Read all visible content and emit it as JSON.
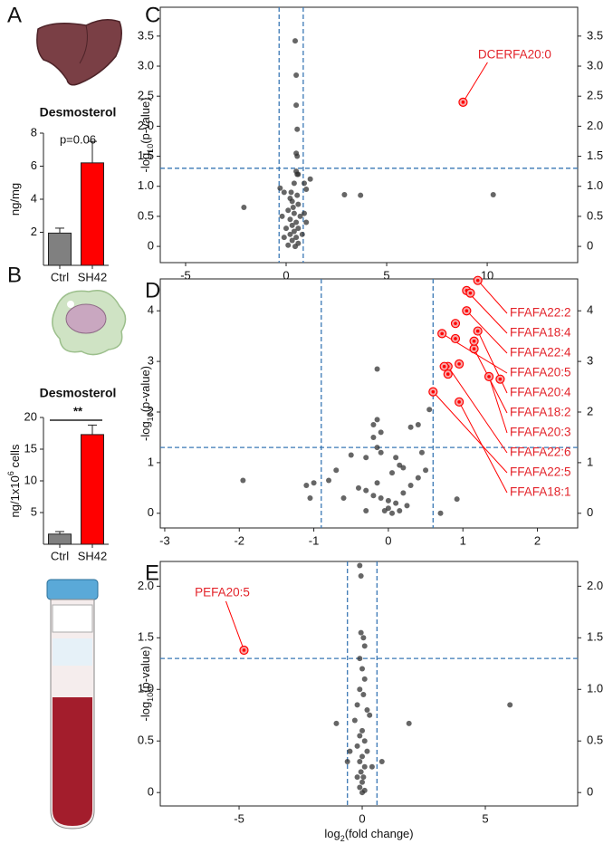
{
  "chart_data": [
    {
      "type": "bar",
      "panel": "A",
      "title": "Desmosterol",
      "annotation": "p=0.06",
      "ylabel": {
        "text": "ng/mg"
      },
      "categories": [
        "Ctrl",
        "SH42"
      ],
      "values": [
        1.95,
        6.2
      ],
      "errors": [
        0.3,
        1.3
      ],
      "colors": [
        "#808080",
        "#ff0000"
      ],
      "ylim": [
        0,
        8
      ],
      "yticks": [
        2,
        4,
        6,
        8
      ]
    },
    {
      "type": "bar",
      "panel": "B",
      "title": "Desmosterol",
      "significance": "**",
      "ylabel": {
        "text": "ng/1x10",
        "sup": "6",
        "tail": " cells"
      },
      "categories": [
        "Ctrl",
        "SH42"
      ],
      "values": [
        1.6,
        17.3
      ],
      "errors": [
        0.4,
        1.5
      ],
      "colors": [
        "#808080",
        "#ff0000"
      ],
      "ylim": [
        0,
        20
      ],
      "yticks": [
        5,
        10,
        15,
        20
      ]
    },
    {
      "type": "scatter",
      "panel": "C",
      "ylabel": {
        "text": "-log",
        "sub": "10",
        "tail": "(p-value)"
      },
      "xlim": [
        -6.26,
        14.5
      ],
      "xticks": [
        -5,
        0,
        5,
        10
      ],
      "ylim": [
        -0.27,
        3.98
      ],
      "yticks": [
        0,
        0.5,
        {
          "value": 1,
          "label": "1.0"
        },
        1.5,
        {
          "value": 2,
          "label": "2.0"
        },
        2.5,
        {
          "value": 3,
          "label": "3.0"
        },
        3.5
      ],
      "vlines": [
        -0.35,
        0.85
      ],
      "hline": 1.3,
      "color": "#333333",
      "highlight_color": "#ff0000",
      "line_color": "#3a78b5",
      "x": [
        0.45,
        0.5,
        0.5,
        0.55,
        0.5,
        0.55,
        0.6,
        0.5,
        0.55,
        0.4,
        -0.3,
        -0.1,
        0.9,
        1.2,
        1.0,
        2.9,
        3.7,
        10.3,
        -2.1,
        0.2,
        0.3,
        0.6,
        0.1,
        0.4,
        0.7,
        0.2,
        0.5,
        0.3,
        0.0,
        0.6,
        0.4,
        0.2,
        0.5,
        0.3,
        0.6,
        0.1,
        0.45,
        0.8,
        0.9,
        1.0,
        -0.2,
        -0.1,
        0.35,
        0.25,
        0.55
      ],
      "values": [
        3.42,
        2.85,
        2.35,
        1.95,
        1.55,
        1.5,
        1.2,
        1.25,
        1.2,
        1.05,
        0.97,
        0.9,
        1.05,
        1.12,
        0.95,
        0.86,
        0.85,
        0.86,
        0.65,
        0.8,
        0.75,
        0.7,
        0.6,
        0.55,
        0.5,
        0.45,
        0.4,
        0.35,
        0.3,
        0.3,
        0.25,
        0.2,
        0.15,
        0.1,
        0.05,
        0.02,
        0.0,
        0.2,
        0.55,
        0.4,
        0.5,
        0.15,
        0.65,
        0.9,
        0.85
      ],
      "highlight": {
        "x": [
          8.8
        ],
        "values": [
          2.4
        ],
        "labels": [
          "DCERFA20:0"
        ]
      }
    },
    {
      "type": "scatter",
      "panel": "D",
      "ylabel": {
        "text": "-log",
        "sub": "10",
        "tail": "(p-value)"
      },
      "xlim": [
        -3.06,
        2.54
      ],
      "xticks": [
        -3,
        -2,
        -1,
        0,
        1,
        2
      ],
      "ylim": [
        -0.29,
        4.63
      ],
      "yticks": [
        0,
        1,
        2,
        3,
        4
      ],
      "vlines": [
        -0.9,
        0.6
      ],
      "hline": 1.3,
      "color": "#333333",
      "highlight_color": "#ff0000",
      "line_color": "#3a78b5",
      "x": [
        -0.15,
        0.55,
        0.4,
        0.3,
        -0.15,
        -0.2,
        -0.1,
        -0.2,
        -0.15,
        -0.1,
        -0.3,
        0.1,
        0.15,
        0.05,
        -0.5,
        -0.7,
        -0.8,
        -1.0,
        -1.1,
        -1.05,
        -1.95,
        -0.4,
        -0.3,
        -0.2,
        -0.1,
        0.0,
        0.1,
        0.0,
        -0.05,
        0.05,
        0.15,
        0.2,
        0.3,
        0.4,
        0.5,
        -0.6,
        0.7,
        0.92,
        -0.3,
        0.25,
        -0.15,
        0.45,
        0.2
      ],
      "values": [
        2.85,
        2.05,
        1.75,
        1.7,
        1.85,
        1.75,
        1.6,
        1.5,
        1.3,
        1.2,
        1.1,
        1.1,
        0.95,
        0.8,
        1.15,
        0.85,
        0.65,
        0.6,
        0.55,
        0.3,
        0.65,
        0.5,
        0.45,
        0.35,
        0.3,
        0.25,
        0.2,
        0.1,
        0.05,
        0.0,
        0.05,
        0.4,
        0.55,
        0.7,
        0.85,
        0.3,
        0.0,
        0.28,
        0.05,
        0.15,
        0.6,
        1.2,
        0.9
      ],
      "highlight": {
        "x": [
          1.2,
          1.05,
          1.05,
          0.72,
          1.2,
          1.15,
          1.35,
          0.8,
          0.6,
          0.95,
          1.1,
          0.9,
          1.15,
          0.75,
          0.95,
          0.8,
          1.5,
          0.9
        ],
        "values": [
          4.6,
          4.4,
          4.0,
          3.55,
          3.6,
          3.25,
          2.7,
          2.9,
          2.4,
          2.2,
          4.35,
          3.75,
          3.4,
          2.9,
          2.95,
          2.75,
          2.65,
          3.45
        ],
        "labels": [
          "FFAFA22:2",
          "FFAFA18:4",
          "FFAFA22:4",
          "FFAFA20:5",
          "FFAFA20:4",
          "FFAFA18:2",
          "FFAFA20:3",
          "FFAFA22:6",
          "FFAFA22:5",
          "FFAFA18:1",
          null,
          null,
          null,
          null,
          null,
          null,
          null,
          null
        ]
      }
    },
    {
      "type": "scatter",
      "panel": "E",
      "ylabel": {
        "text": "-log",
        "sub": "10",
        "tail": "(p-value)"
      },
      "xlabel": {
        "text": "log",
        "sub": "2",
        "tail": "(fold change)"
      },
      "xlim": [
        -8.2,
        8.75
      ],
      "xticks": [
        -5,
        0,
        5
      ],
      "ylim": [
        -0.13,
        2.24
      ],
      "yticks": [
        0,
        0.5,
        {
          "value": 1,
          "label": "1.0"
        },
        1.5,
        {
          "value": 2,
          "label": "2.0"
        }
      ],
      "vlines": [
        -0.6,
        0.6
      ],
      "hline": 1.3,
      "color": "#333333",
      "highlight_color": "#ff0000",
      "line_color": "#3a78b5",
      "x": [
        -0.1,
        -0.05,
        -0.05,
        0.05,
        0.1,
        -0.1,
        0.0,
        0.1,
        -0.1,
        0.05,
        -0.2,
        0.2,
        -0.3,
        0.3,
        -1.05,
        1.9,
        6.0,
        0.8,
        -0.6,
        0.0,
        -0.1,
        0.1,
        -0.2,
        0.2,
        0.0,
        -0.1,
        0.1,
        -0.05,
        0.05,
        0.0,
        -0.1,
        0.1,
        0.0,
        -0.5,
        0.4,
        -0.2
      ],
      "values": [
        2.2,
        2.1,
        1.55,
        1.5,
        1.42,
        1.3,
        1.2,
        1.1,
        1.0,
        0.95,
        0.85,
        0.8,
        0.7,
        0.75,
        0.67,
        0.67,
        0.85,
        0.3,
        0.3,
        0.6,
        0.55,
        0.5,
        0.45,
        0.4,
        0.35,
        0.3,
        0.25,
        0.2,
        0.15,
        0.1,
        0.05,
        0.02,
        0.0,
        0.4,
        0.25,
        0.15
      ],
      "highlight": {
        "x": [
          -4.8
        ],
        "values": [
          1.38
        ],
        "labels": [
          "PEFA20:5"
        ]
      }
    }
  ]
}
